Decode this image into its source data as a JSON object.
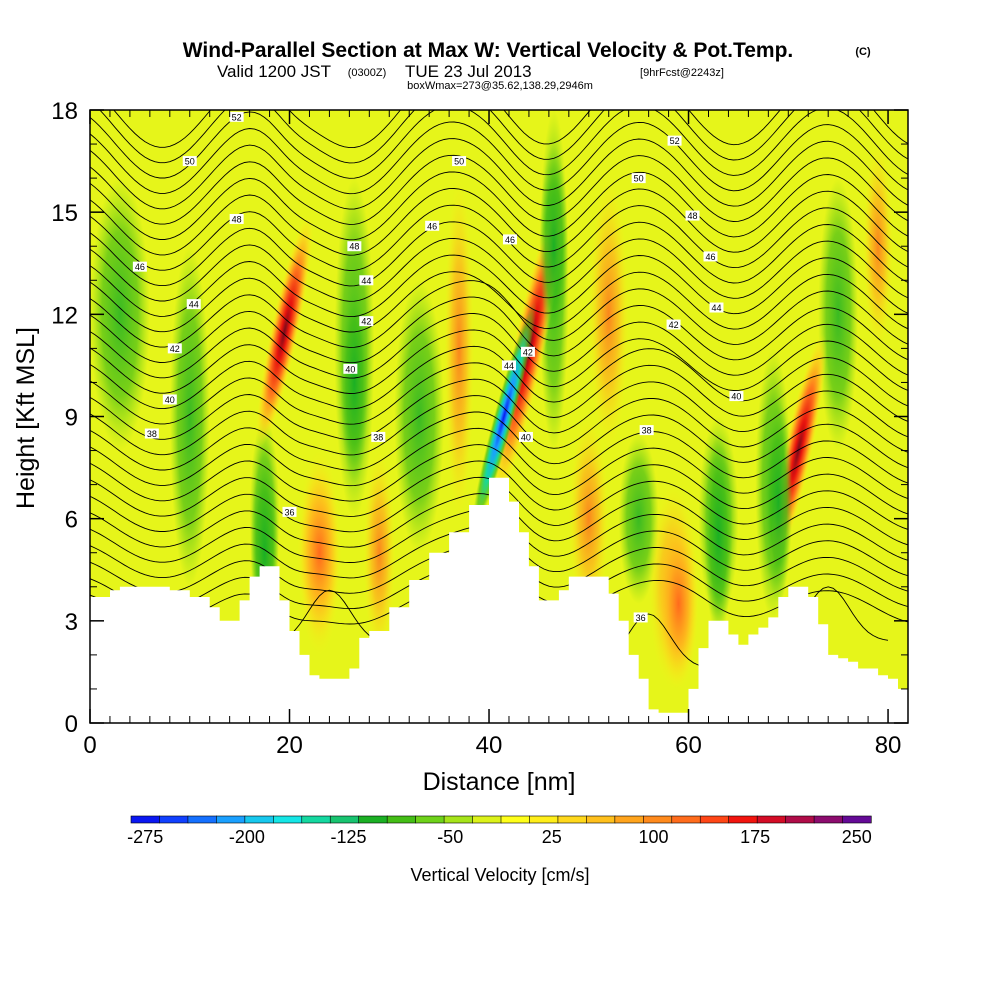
{
  "header": {
    "title_main": "Wind-Parallel Section at Max W: Vertical Velocity & Pot.Temp.",
    "title_tag": "(C)",
    "valid_prefix": "Valid 1200 JST",
    "valid_utc": "(0300Z)",
    "valid_date": "TUE 23 Jul 2013",
    "valid_fcst": "[9hrFcst@2243z]",
    "box_info": "boxWmax=273@35.62,138.29,2946m"
  },
  "chart_data": {
    "type": "heatmap",
    "title": "Wind-Parallel Section at Max W: Vertical Velocity & Pot.Temp.",
    "xlabel": "Distance [nm]",
    "ylabel": "Height [Kft MSL]",
    "xlim": [
      0,
      82
    ],
    "ylim": [
      0,
      18
    ],
    "x_ticks": [
      "0",
      "20",
      "40",
      "60",
      "80"
    ],
    "y_ticks": [
      "0",
      "3",
      "6",
      "9",
      "12",
      "15",
      "18"
    ],
    "terrain": {
      "x": [
        0,
        0.8,
        2,
        3,
        5,
        8,
        10,
        12,
        13,
        14,
        15,
        16,
        17,
        18,
        19,
        20,
        21,
        22,
        23,
        24,
        25,
        26,
        27,
        28,
        30,
        32,
        34,
        36,
        38,
        40,
        41,
        42,
        43,
        44,
        45,
        46,
        47,
        48,
        50,
        52,
        53,
        54,
        55,
        56,
        57,
        58,
        59,
        60,
        61,
        62,
        63,
        64,
        65,
        66,
        67,
        68,
        69,
        70,
        71,
        72,
        73,
        74,
        75,
        76,
        77,
        78,
        79,
        80,
        81,
        82
      ],
      "y": [
        3.7,
        3.7,
        3.9,
        4.0,
        4.0,
        3.9,
        3.7,
        3.4,
        3.0,
        3.0,
        3.6,
        4.3,
        4.6,
        4.6,
        3.6,
        2.7,
        2.0,
        1.4,
        1.3,
        1.3,
        1.3,
        1.6,
        2.5,
        2.7,
        3.4,
        4.2,
        5.0,
        5.6,
        6.4,
        7.2,
        7.2,
        6.5,
        5.6,
        4.6,
        3.6,
        3.6,
        3.9,
        4.3,
        4.3,
        3.8,
        3.0,
        2.0,
        1.3,
        0.4,
        0.3,
        0.3,
        0.3,
        1.0,
        2.2,
        3.0,
        3.0,
        2.6,
        2.3,
        2.6,
        2.8,
        3.1,
        3.7,
        4.0,
        4.0,
        3.7,
        2.9,
        2.0,
        1.9,
        1.8,
        1.6,
        1.6,
        1.4,
        1.3,
        1.0,
        1.0
      ]
    },
    "updraft_cores": [
      {
        "x": 19.5,
        "y": 11.5,
        "value": 200
      },
      {
        "x": 44.0,
        "y": 11.0,
        "value": 273
      },
      {
        "x": 71.0,
        "y": 8.0,
        "value": 175
      },
      {
        "x": 59.0,
        "y": 3.5,
        "value": 150
      },
      {
        "x": 23.0,
        "y": 5.0,
        "value": 110
      }
    ],
    "downdraft_cores": [
      {
        "x": 41.5,
        "y": 9.0,
        "value": -275
      },
      {
        "x": 17.5,
        "y": 5.0,
        "value": -80
      },
      {
        "x": 26.5,
        "y": 10.0,
        "value": -70
      },
      {
        "x": 46.5,
        "y": 14.0,
        "value": -90
      },
      {
        "x": 63.0,
        "y": 5.5,
        "value": -60
      },
      {
        "x": 69.0,
        "y": 6.5,
        "value": -70
      }
    ],
    "contour_labels": [
      {
        "x": 5,
        "y": 13.4,
        "text": "46"
      },
      {
        "x": 8.5,
        "y": 11.0,
        "text": "42"
      },
      {
        "x": 8.0,
        "y": 9.5,
        "text": "40"
      },
      {
        "x": 6.2,
        "y": 8.5,
        "text": "38"
      },
      {
        "x": 10.4,
        "y": 12.3,
        "text": "44"
      },
      {
        "x": 10.0,
        "y": 16.5,
        "text": "50"
      },
      {
        "x": 14.7,
        "y": 14.8,
        "text": "48"
      },
      {
        "x": 14.7,
        "y": 17.8,
        "text": "52"
      },
      {
        "x": 20.0,
        "y": 6.2,
        "text": "36"
      },
      {
        "x": 26.5,
        "y": 14.0,
        "text": "48"
      },
      {
        "x": 27.7,
        "y": 13.0,
        "text": "44"
      },
      {
        "x": 27.7,
        "y": 11.8,
        "text": "42"
      },
      {
        "x": 26.1,
        "y": 10.4,
        "text": "40"
      },
      {
        "x": 28.9,
        "y": 8.4,
        "text": "38"
      },
      {
        "x": 34.3,
        "y": 14.6,
        "text": "46"
      },
      {
        "x": 37.0,
        "y": 16.5,
        "text": "50"
      },
      {
        "x": 42.1,
        "y": 14.2,
        "text": "46"
      },
      {
        "x": 42.0,
        "y": 10.5,
        "text": "44"
      },
      {
        "x": 43.9,
        "y": 10.9,
        "text": "42"
      },
      {
        "x": 43.7,
        "y": 8.4,
        "text": "40"
      },
      {
        "x": 55.2,
        "y": 3.1,
        "text": "36"
      },
      {
        "x": 55.8,
        "y": 8.6,
        "text": "38"
      },
      {
        "x": 55.0,
        "y": 16.0,
        "text": "50"
      },
      {
        "x": 58.6,
        "y": 17.1,
        "text": "52"
      },
      {
        "x": 60.4,
        "y": 14.9,
        "text": "48"
      },
      {
        "x": 62.2,
        "y": 13.7,
        "text": "46"
      },
      {
        "x": 62.8,
        "y": 12.2,
        "text": "44"
      },
      {
        "x": 58.5,
        "y": 11.7,
        "text": "42"
      },
      {
        "x": 64.8,
        "y": 9.6,
        "text": "40"
      }
    ],
    "colorbar": {
      "label": "Vertical Velocity [cm/s]",
      "tick_labels": [
        "-275",
        "-200",
        "-125",
        "-50",
        "25",
        "100",
        "175",
        "250"
      ],
      "colors": [
        "#0a17f2",
        "#1040ff",
        "#1470ff",
        "#1aa0ff",
        "#17c8ee",
        "#15e6e6",
        "#15d8a0",
        "#18c470",
        "#1bb024",
        "#44be16",
        "#6ed21a",
        "#a6e41a",
        "#dcf21a",
        "#ffff1a",
        "#ffee1a",
        "#ffd81c",
        "#ffc01c",
        "#ffa41c",
        "#ff8a1c",
        "#ff6c1c",
        "#ff4616",
        "#f2140e",
        "#d40c26",
        "#b00c48",
        "#8c0c6e",
        "#640a96"
      ]
    }
  }
}
